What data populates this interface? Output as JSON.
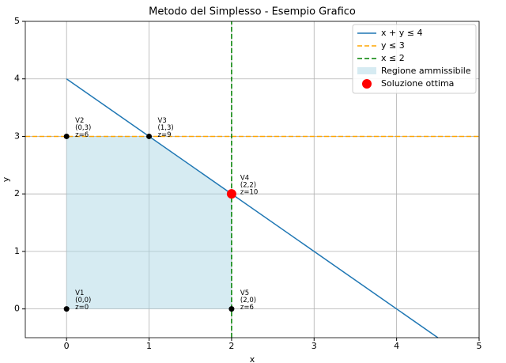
{
  "chart_data": {
    "type": "lp",
    "title": "Metodo del Simplesso - Esempio Grafico",
    "xlabel": "x",
    "ylabel": "y",
    "xlim": [
      -0.5,
      5
    ],
    "ylim": [
      -0.5,
      5
    ],
    "xticks": [
      0,
      1,
      2,
      3,
      4,
      5
    ],
    "yticks": [
      0,
      1,
      2,
      3,
      4,
      5
    ],
    "grid": true,
    "legend_position": "upper right",
    "series": [
      {
        "name": "x + y ≤ 4",
        "color": "#1f77b4",
        "style": "solid",
        "x": [
          0,
          4.5
        ],
        "values": [
          4,
          -0.5
        ]
      },
      {
        "name": "y ≤ 3",
        "color": "#ffa500",
        "style": "dashed",
        "x": [
          -0.5,
          5
        ],
        "values": [
          3,
          3
        ]
      },
      {
        "name": "x ≤ 2",
        "color": "#008000",
        "style": "dashed",
        "x": [
          2,
          2
        ],
        "values": [
          -0.5,
          5
        ]
      }
    ],
    "region": {
      "name": "Regione ammissibile",
      "color": "#add8e6",
      "x": [
        0,
        0,
        1,
        2,
        2
      ],
      "values": [
        0,
        3,
        3,
        2,
        0
      ]
    },
    "optimum": {
      "name": "Soluzione ottima",
      "color": "#ff0000",
      "x": 2,
      "value": 2
    },
    "vertices": [
      {
        "label": "V1",
        "coords": "(0,0)",
        "z": "z=0",
        "x": 0,
        "y": 0
      },
      {
        "label": "V2",
        "coords": "(0,3)",
        "z": "z=6",
        "x": 0,
        "y": 3
      },
      {
        "label": "V3",
        "coords": "(1,3)",
        "z": "z=9",
        "x": 1,
        "y": 3
      },
      {
        "label": "V4",
        "coords": "(2,2)",
        "z": "z=10",
        "x": 2,
        "y": 2
      },
      {
        "label": "V5",
        "coords": "(2,0)",
        "z": "z=6",
        "x": 2,
        "y": 0
      }
    ]
  }
}
